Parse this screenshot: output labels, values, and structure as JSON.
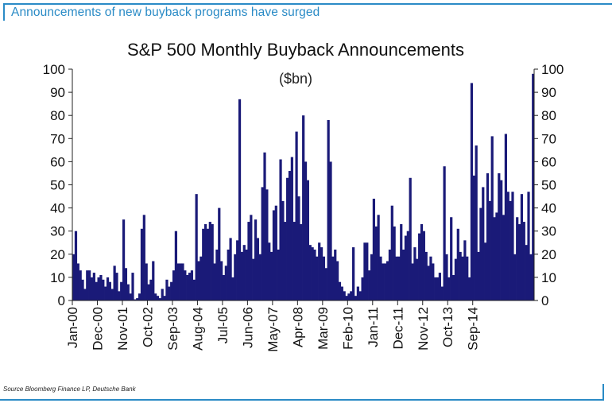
{
  "banner": {
    "text": "Announcements of new buyback programs have surged"
  },
  "source": {
    "text": "Source  Bloomberg Finance LP,  Deutsche Bank"
  },
  "chart_data": {
    "type": "bar",
    "title": "S&P 500 Monthly Buyback Announcements",
    "subtitle": "($bn)",
    "bar_color": "#1a1a78",
    "ylim": [
      0,
      100
    ],
    "y_ticks": [
      0,
      10,
      20,
      30,
      40,
      50,
      60,
      70,
      80,
      90,
      100
    ],
    "x_tick_labels": [
      "Jan-00",
      "Dec-00",
      "Nov-01",
      "Oct-02",
      "Sep-03",
      "Aug-04",
      "Jul-05",
      "Jun-06",
      "May-07",
      "Apr-08",
      "Mar-09",
      "Feb-10",
      "Jan-11",
      "Dec-11",
      "Nov-12",
      "Oct-13",
      "Sep-14"
    ],
    "x_tick_interval_months": 11,
    "start": "Jan-00",
    "values": [
      20,
      30,
      16,
      13,
      9,
      5,
      13,
      13,
      10,
      12,
      8,
      10,
      11,
      9,
      6,
      10,
      8,
      5,
      15,
      12,
      4,
      8,
      35,
      14,
      7,
      3,
      12,
      0.5,
      1,
      3,
      31,
      37,
      16,
      7,
      9,
      17,
      3,
      2,
      1,
      5,
      2,
      9,
      6,
      8,
      13,
      30,
      16,
      16,
      16,
      13,
      11,
      12,
      13,
      9,
      46,
      17,
      19,
      31,
      33,
      31,
      34,
      33,
      16,
      22,
      40,
      17,
      11,
      15,
      22,
      27,
      10,
      20,
      26,
      87,
      21,
      24,
      22,
      34,
      37,
      18,
      35,
      27,
      20,
      49,
      64,
      48,
      25,
      21,
      39,
      41,
      22,
      61,
      43,
      34,
      53,
      56,
      62,
      34,
      73,
      45,
      33,
      80,
      60,
      52,
      24,
      23,
      22,
      19,
      25,
      23,
      19,
      14,
      78,
      60,
      19,
      22,
      17,
      8,
      6,
      4,
      2,
      3,
      4,
      23,
      2,
      6,
      4,
      10,
      25,
      25,
      13,
      20,
      44,
      32,
      37,
      19,
      16,
      16,
      17,
      22,
      41,
      32,
      19,
      19,
      33,
      22,
      28,
      30,
      53,
      16,
      23,
      18,
      29,
      33,
      30,
      21,
      15,
      19,
      16,
      10,
      10,
      12,
      6,
      58,
      20,
      10,
      36,
      11,
      18,
      31,
      21,
      19,
      26,
      19,
      10,
      94,
      54,
      67,
      21,
      40,
      49,
      25,
      55,
      43,
      71,
      36,
      38,
      55,
      52,
      37,
      72,
      47,
      43,
      47,
      20,
      36,
      33,
      46,
      34,
      24,
      47,
      20,
      98
    ]
  }
}
